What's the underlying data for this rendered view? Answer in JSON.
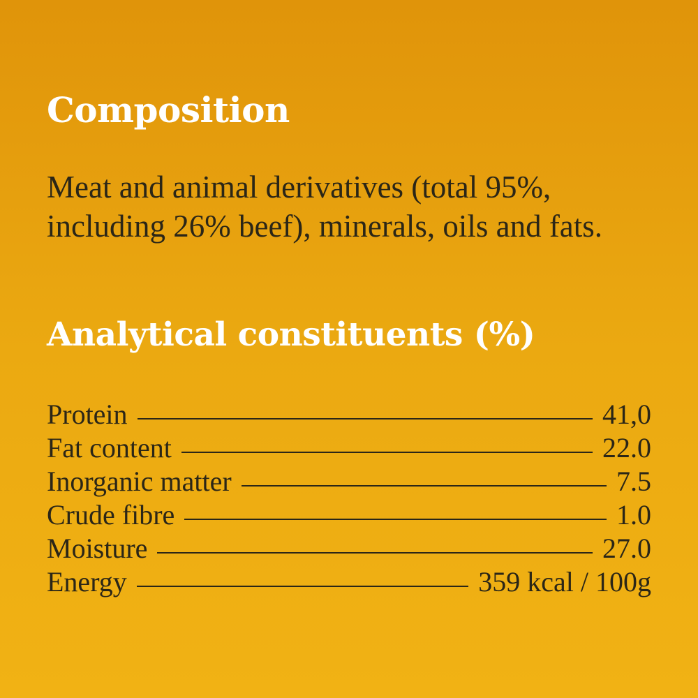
{
  "composition": {
    "title": "Composition",
    "text": "Meat and animal derivatives (total 95%, including 26% beef), minerals, oils and fats."
  },
  "analytical": {
    "title": "Analytical constituents (%)",
    "rows": [
      {
        "label": "Protein",
        "value": "41,0"
      },
      {
        "label": "Fat content",
        "value": "22.0"
      },
      {
        "label": "Inorganic matter",
        "value": "7.5"
      },
      {
        "label": "Crude fibre",
        "value": "1.0"
      },
      {
        "label": "Moisture",
        "value": "27.0"
      },
      {
        "label": "Energy",
        "value": "359 kcal / 100g"
      }
    ]
  }
}
